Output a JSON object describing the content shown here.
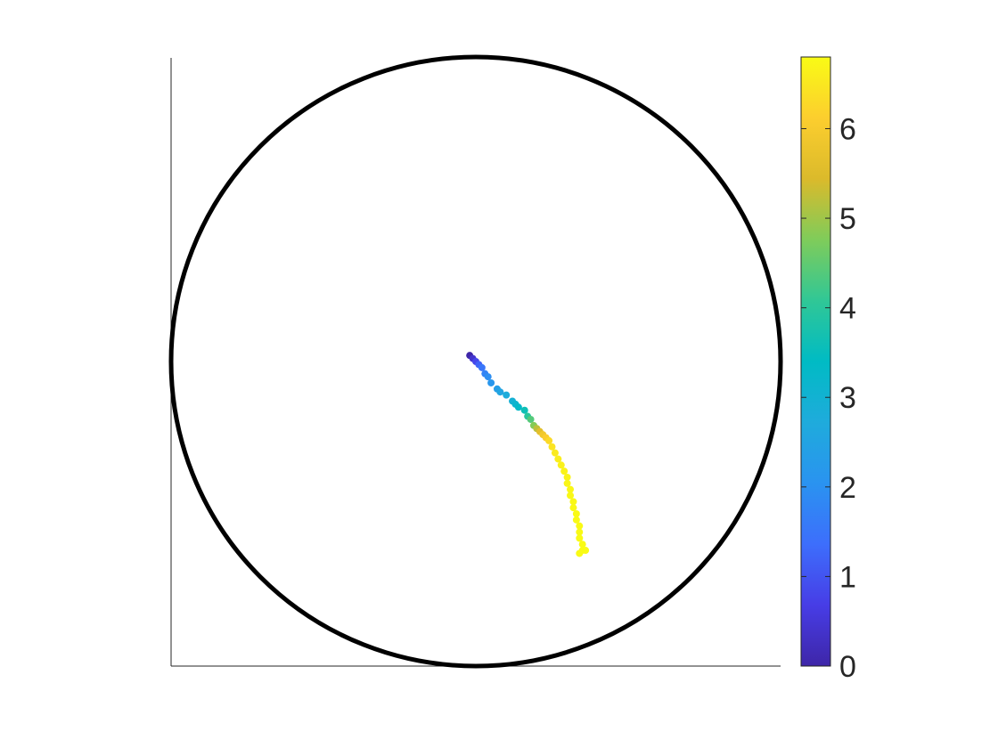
{
  "chart_data": {
    "type": "scatter",
    "title": "",
    "xlabel": "",
    "ylabel": "",
    "xlim": [
      -1,
      1
    ],
    "ylim": [
      -1,
      1
    ],
    "grid": false,
    "axes_lines": [
      "left",
      "bottom"
    ],
    "boundary": {
      "shape": "circle",
      "center": [
        0,
        0
      ],
      "radius": 1,
      "color": "#000000"
    },
    "colormap": "parula",
    "colorbar": {
      "location": "right",
      "range": [
        0,
        6.8
      ],
      "ticks": [
        0,
        1,
        2,
        3,
        4,
        5,
        6
      ],
      "tick_labels": [
        "0",
        "1",
        "2",
        "3",
        "4",
        "5",
        "6"
      ]
    },
    "points": [
      {
        "x": -0.02,
        "y": 0.02,
        "c": 0.0
      },
      {
        "x": -0.01,
        "y": 0.01,
        "c": 0.4
      },
      {
        "x": 0.0,
        "y": 0.0,
        "c": 0.8
      },
      {
        "x": 0.01,
        "y": -0.01,
        "c": 1.2
      },
      {
        "x": 0.02,
        "y": -0.02,
        "c": 1.5
      },
      {
        "x": 0.03,
        "y": -0.04,
        "c": 1.75
      },
      {
        "x": 0.04,
        "y": -0.05,
        "c": 1.95
      },
      {
        "x": 0.05,
        "y": -0.07,
        "c": 2.15
      },
      {
        "x": 0.07,
        "y": -0.09,
        "c": 2.35
      },
      {
        "x": 0.08,
        "y": -0.1,
        "c": 2.55
      },
      {
        "x": 0.1,
        "y": -0.11,
        "c": 2.75
      },
      {
        "x": 0.12,
        "y": -0.13,
        "c": 2.95
      },
      {
        "x": 0.13,
        "y": -0.14,
        "c": 3.1
      },
      {
        "x": 0.14,
        "y": -0.15,
        "c": 3.3
      },
      {
        "x": 0.16,
        "y": -0.16,
        "c": 3.6
      },
      {
        "x": 0.17,
        "y": -0.18,
        "c": 4.0
      },
      {
        "x": 0.18,
        "y": -0.19,
        "c": 4.4
      },
      {
        "x": 0.19,
        "y": -0.21,
        "c": 4.8
      },
      {
        "x": 0.2,
        "y": -0.22,
        "c": 5.2
      },
      {
        "x": 0.21,
        "y": -0.23,
        "c": 5.6
      },
      {
        "x": 0.22,
        "y": -0.24,
        "c": 5.9
      },
      {
        "x": 0.23,
        "y": -0.25,
        "c": 6.1
      },
      {
        "x": 0.24,
        "y": -0.26,
        "c": 6.3
      },
      {
        "x": 0.25,
        "y": -0.28,
        "c": 6.45
      },
      {
        "x": 0.26,
        "y": -0.3,
        "c": 6.55
      },
      {
        "x": 0.27,
        "y": -0.32,
        "c": 6.6
      },
      {
        "x": 0.28,
        "y": -0.34,
        "c": 6.65
      },
      {
        "x": 0.29,
        "y": -0.36,
        "c": 6.68
      },
      {
        "x": 0.3,
        "y": -0.38,
        "c": 6.7
      },
      {
        "x": 0.3,
        "y": -0.4,
        "c": 6.72
      },
      {
        "x": 0.31,
        "y": -0.42,
        "c": 6.74
      },
      {
        "x": 0.31,
        "y": -0.44,
        "c": 6.75
      },
      {
        "x": 0.32,
        "y": -0.46,
        "c": 6.76
      },
      {
        "x": 0.32,
        "y": -0.48,
        "c": 6.77
      },
      {
        "x": 0.33,
        "y": -0.5,
        "c": 6.78
      },
      {
        "x": 0.33,
        "y": -0.52,
        "c": 6.78
      },
      {
        "x": 0.34,
        "y": -0.54,
        "c": 6.79
      },
      {
        "x": 0.34,
        "y": -0.56,
        "c": 6.79
      },
      {
        "x": 0.34,
        "y": -0.58,
        "c": 6.8
      },
      {
        "x": 0.35,
        "y": -0.6,
        "c": 6.8
      },
      {
        "x": 0.35,
        "y": -0.62,
        "c": 6.8
      },
      {
        "x": 0.34,
        "y": -0.63,
        "c": 6.8
      },
      {
        "x": 0.36,
        "y": -0.62,
        "c": 6.8
      }
    ]
  }
}
